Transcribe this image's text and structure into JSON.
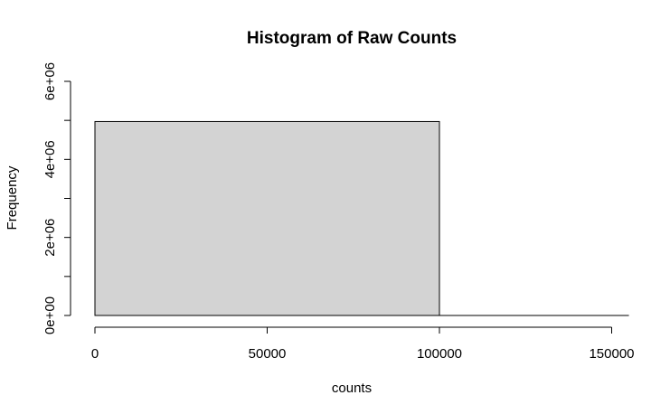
{
  "chart_data": {
    "type": "bar",
    "title": "Histogram of Raw Counts",
    "xlabel": "counts",
    "ylabel": "Frequency",
    "bins": [
      {
        "start": 0,
        "end": 100000,
        "count": 4970000
      },
      {
        "start": 100000,
        "end": 155000,
        "count": 0
      }
    ],
    "xlim": [
      0,
      155000
    ],
    "ylim": [
      0,
      6000000
    ],
    "xticks": [
      0,
      50000,
      100000,
      150000
    ],
    "xtick_labels": [
      "0",
      "50000",
      "100000",
      "150000"
    ],
    "yticks": [
      0,
      1000000,
      2000000,
      3000000,
      4000000,
      5000000,
      6000000
    ],
    "ytick_labels": [
      "0e+00",
      "",
      "2e+06",
      "",
      "4e+06",
      "",
      "6e+06"
    ],
    "grid": false,
    "bar_color": "#d3d3d3"
  }
}
